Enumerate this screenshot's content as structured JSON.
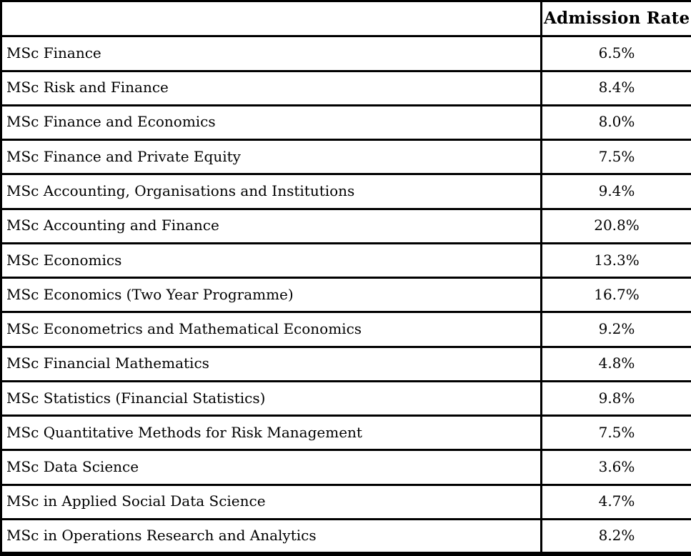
{
  "colors": {
    "border": "#000000",
    "text": "#000000",
    "background": "#ffffff"
  },
  "table": {
    "header": {
      "program": "",
      "admission_rate": "Admission Rate"
    },
    "rows": [
      {
        "program": "MSc Finance",
        "rate": "6.5%"
      },
      {
        "program": "MSc Risk and Finance",
        "rate": "8.4%"
      },
      {
        "program": "MSc Finance and Economics",
        "rate": "8.0%"
      },
      {
        "program": "MSc Finance and Private Equity",
        "rate": "7.5%"
      },
      {
        "program": "MSc Accounting, Organisations and Institutions",
        "rate": "9.4%"
      },
      {
        "program": "MSc Accounting and Finance",
        "rate": "20.8%"
      },
      {
        "program": "MSc Economics",
        "rate": "13.3%"
      },
      {
        "program": "MSc Economics (Two Year Programme)",
        "rate": "16.7%"
      },
      {
        "program": "MSc Econometrics and Mathematical Economics",
        "rate": "9.2%"
      },
      {
        "program": "MSc Financial Mathematics",
        "rate": "4.8%"
      },
      {
        "program": "MSc Statistics (Financial Statistics)",
        "rate": "9.8%"
      },
      {
        "program": "MSc Quantitative Methods for Risk Management",
        "rate": "7.5%"
      },
      {
        "program": "MSc Data Science",
        "rate": "3.6%"
      },
      {
        "program": "MSc in Applied Social Data Science",
        "rate": "4.7%"
      },
      {
        "program": "MSc in Operations Research and Analytics",
        "rate": "8.2%"
      }
    ]
  },
  "chart_data": {
    "type": "table",
    "columns": [
      "",
      "Admission Rate"
    ],
    "categories": [
      "MSc Finance",
      "MSc Risk and Finance",
      "MSc Finance and Economics",
      "MSc Finance and Private Equity",
      "MSc Accounting, Organisations and Institutions",
      "MSc Accounting and Finance",
      "MSc Economics",
      "MSc Economics (Two Year Programme)",
      "MSc Econometrics and Mathematical Economics",
      "MSc Financial Mathematics",
      "MSc Statistics (Financial Statistics)",
      "MSc Quantitative Methods for Risk Management",
      "MSc Data Science",
      "MSc in Applied Social Data Science",
      "MSc in Operations Research and Analytics"
    ],
    "values_percent": [
      6.5,
      8.4,
      8.0,
      7.5,
      9.4,
      20.8,
      13.3,
      16.7,
      9.2,
      4.8,
      9.8,
      7.5,
      3.6,
      4.7,
      8.2
    ]
  }
}
